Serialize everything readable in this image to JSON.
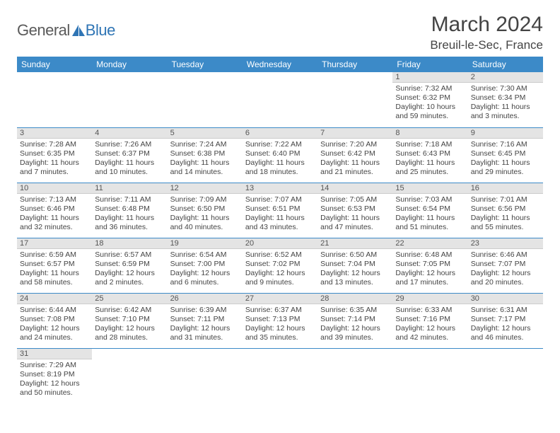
{
  "brand": {
    "part1": "General",
    "part2": "Blue",
    "color1": "#5a5a5a",
    "color2": "#2f75b5"
  },
  "title": "March 2024",
  "location": "Breuil-le-Sec, France",
  "colors": {
    "header_bg": "#3c8ac8",
    "header_fg": "#ffffff",
    "daynum_bg": "#e4e4e4",
    "cell_border": "#3c8ac8",
    "text": "#444444"
  },
  "weekdays": [
    "Sunday",
    "Monday",
    "Tuesday",
    "Wednesday",
    "Thursday",
    "Friday",
    "Saturday"
  ],
  "weeks": [
    [
      null,
      null,
      null,
      null,
      null,
      {
        "n": "1",
        "sr": "Sunrise: 7:32 AM",
        "ss": "Sunset: 6:32 PM",
        "dl": "Daylight: 10 hours and 59 minutes."
      },
      {
        "n": "2",
        "sr": "Sunrise: 7:30 AM",
        "ss": "Sunset: 6:34 PM",
        "dl": "Daylight: 11 hours and 3 minutes."
      }
    ],
    [
      {
        "n": "3",
        "sr": "Sunrise: 7:28 AM",
        "ss": "Sunset: 6:35 PM",
        "dl": "Daylight: 11 hours and 7 minutes."
      },
      {
        "n": "4",
        "sr": "Sunrise: 7:26 AM",
        "ss": "Sunset: 6:37 PM",
        "dl": "Daylight: 11 hours and 10 minutes."
      },
      {
        "n": "5",
        "sr": "Sunrise: 7:24 AM",
        "ss": "Sunset: 6:38 PM",
        "dl": "Daylight: 11 hours and 14 minutes."
      },
      {
        "n": "6",
        "sr": "Sunrise: 7:22 AM",
        "ss": "Sunset: 6:40 PM",
        "dl": "Daylight: 11 hours and 18 minutes."
      },
      {
        "n": "7",
        "sr": "Sunrise: 7:20 AM",
        "ss": "Sunset: 6:42 PM",
        "dl": "Daylight: 11 hours and 21 minutes."
      },
      {
        "n": "8",
        "sr": "Sunrise: 7:18 AM",
        "ss": "Sunset: 6:43 PM",
        "dl": "Daylight: 11 hours and 25 minutes."
      },
      {
        "n": "9",
        "sr": "Sunrise: 7:16 AM",
        "ss": "Sunset: 6:45 PM",
        "dl": "Daylight: 11 hours and 29 minutes."
      }
    ],
    [
      {
        "n": "10",
        "sr": "Sunrise: 7:13 AM",
        "ss": "Sunset: 6:46 PM",
        "dl": "Daylight: 11 hours and 32 minutes."
      },
      {
        "n": "11",
        "sr": "Sunrise: 7:11 AM",
        "ss": "Sunset: 6:48 PM",
        "dl": "Daylight: 11 hours and 36 minutes."
      },
      {
        "n": "12",
        "sr": "Sunrise: 7:09 AM",
        "ss": "Sunset: 6:50 PM",
        "dl": "Daylight: 11 hours and 40 minutes."
      },
      {
        "n": "13",
        "sr": "Sunrise: 7:07 AM",
        "ss": "Sunset: 6:51 PM",
        "dl": "Daylight: 11 hours and 43 minutes."
      },
      {
        "n": "14",
        "sr": "Sunrise: 7:05 AM",
        "ss": "Sunset: 6:53 PM",
        "dl": "Daylight: 11 hours and 47 minutes."
      },
      {
        "n": "15",
        "sr": "Sunrise: 7:03 AM",
        "ss": "Sunset: 6:54 PM",
        "dl": "Daylight: 11 hours and 51 minutes."
      },
      {
        "n": "16",
        "sr": "Sunrise: 7:01 AM",
        "ss": "Sunset: 6:56 PM",
        "dl": "Daylight: 11 hours and 55 minutes."
      }
    ],
    [
      {
        "n": "17",
        "sr": "Sunrise: 6:59 AM",
        "ss": "Sunset: 6:57 PM",
        "dl": "Daylight: 11 hours and 58 minutes."
      },
      {
        "n": "18",
        "sr": "Sunrise: 6:57 AM",
        "ss": "Sunset: 6:59 PM",
        "dl": "Daylight: 12 hours and 2 minutes."
      },
      {
        "n": "19",
        "sr": "Sunrise: 6:54 AM",
        "ss": "Sunset: 7:00 PM",
        "dl": "Daylight: 12 hours and 6 minutes."
      },
      {
        "n": "20",
        "sr": "Sunrise: 6:52 AM",
        "ss": "Sunset: 7:02 PM",
        "dl": "Daylight: 12 hours and 9 minutes."
      },
      {
        "n": "21",
        "sr": "Sunrise: 6:50 AM",
        "ss": "Sunset: 7:04 PM",
        "dl": "Daylight: 12 hours and 13 minutes."
      },
      {
        "n": "22",
        "sr": "Sunrise: 6:48 AM",
        "ss": "Sunset: 7:05 PM",
        "dl": "Daylight: 12 hours and 17 minutes."
      },
      {
        "n": "23",
        "sr": "Sunrise: 6:46 AM",
        "ss": "Sunset: 7:07 PM",
        "dl": "Daylight: 12 hours and 20 minutes."
      }
    ],
    [
      {
        "n": "24",
        "sr": "Sunrise: 6:44 AM",
        "ss": "Sunset: 7:08 PM",
        "dl": "Daylight: 12 hours and 24 minutes."
      },
      {
        "n": "25",
        "sr": "Sunrise: 6:42 AM",
        "ss": "Sunset: 7:10 PM",
        "dl": "Daylight: 12 hours and 28 minutes."
      },
      {
        "n": "26",
        "sr": "Sunrise: 6:39 AM",
        "ss": "Sunset: 7:11 PM",
        "dl": "Daylight: 12 hours and 31 minutes."
      },
      {
        "n": "27",
        "sr": "Sunrise: 6:37 AM",
        "ss": "Sunset: 7:13 PM",
        "dl": "Daylight: 12 hours and 35 minutes."
      },
      {
        "n": "28",
        "sr": "Sunrise: 6:35 AM",
        "ss": "Sunset: 7:14 PM",
        "dl": "Daylight: 12 hours and 39 minutes."
      },
      {
        "n": "29",
        "sr": "Sunrise: 6:33 AM",
        "ss": "Sunset: 7:16 PM",
        "dl": "Daylight: 12 hours and 42 minutes."
      },
      {
        "n": "30",
        "sr": "Sunrise: 6:31 AM",
        "ss": "Sunset: 7:17 PM",
        "dl": "Daylight: 12 hours and 46 minutes."
      }
    ],
    [
      {
        "n": "31",
        "sr": "Sunrise: 7:29 AM",
        "ss": "Sunset: 8:19 PM",
        "dl": "Daylight: 12 hours and 50 minutes."
      },
      null,
      null,
      null,
      null,
      null,
      null
    ]
  ]
}
